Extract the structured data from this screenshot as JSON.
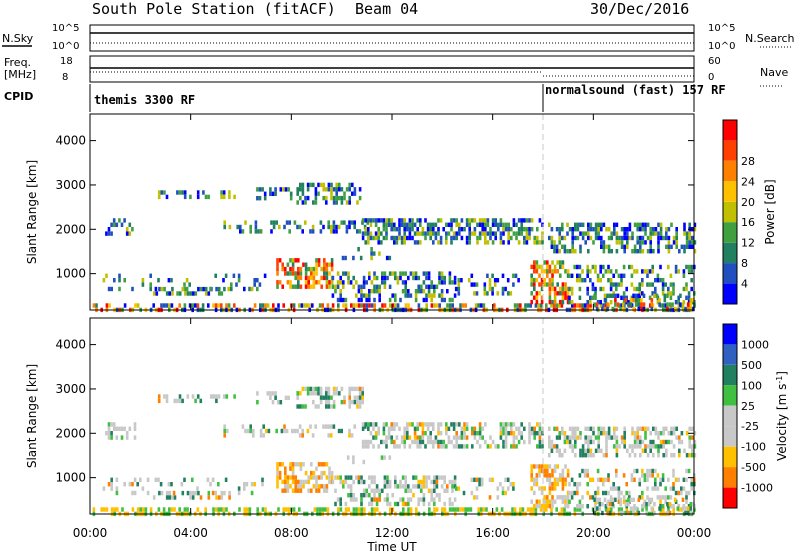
{
  "header": {
    "station": "South Pole Station (fitACF)",
    "beam": "Beam 04",
    "date": "30/Dec/2016"
  },
  "strip_labels": {
    "nsky": "N.Sky",
    "freq_line1": "Freq.",
    "freq_line2": "[MHz]",
    "cpid": "CPID",
    "nsearch": "N.Search",
    "nave": "Nave",
    "nsky_ticks": [
      "10^5",
      "10^0"
    ],
    "nsearch_ticks": [
      "10^5",
      "10^0"
    ],
    "freq_ticks": [
      "18",
      "8"
    ],
    "nave_ticks": [
      "60",
      "0"
    ]
  },
  "cpid_programs": [
    {
      "name": "themis 3300 RF",
      "start_hour": 0
    },
    {
      "name": "normalsound (fast) 157 RF",
      "start_hour": 18.0
    }
  ],
  "chart_data": [
    {
      "type": "heatmap",
      "ylabel": "Slant Range [km]",
      "xlabel": "Time UT",
      "xlim_hours": [
        0,
        24
      ],
      "ylim": [
        180,
        4600
      ],
      "y_ticks": [
        "1000",
        "2000",
        "3000",
        "4000"
      ],
      "x_ticks": [
        "00:00",
        "04:00",
        "08:00",
        "12:00",
        "16:00",
        "20:00",
        "00:00"
      ],
      "colorbar": {
        "label": "Power [dB]",
        "ticks": [
          "4",
          "8",
          "12",
          "16",
          "20",
          "24",
          "28"
        ],
        "colors": [
          "#0000ff",
          "#2050c0",
          "#208060",
          "#40a040",
          "#c0c000",
          "#ffc000",
          "#ff8000",
          "#ff4000",
          "#ff0000"
        ]
      }
    },
    {
      "type": "heatmap",
      "ylabel": "Slant Range [km]",
      "xlabel": "Time UT",
      "xlim_hours": [
        0,
        24
      ],
      "ylim": [
        180,
        4600
      ],
      "y_ticks": [
        "1000",
        "2000",
        "3000",
        "4000"
      ],
      "x_ticks": [
        "00:00",
        "04:00",
        "08:00",
        "12:00",
        "16:00",
        "20:00",
        "00:00"
      ],
      "colorbar": {
        "label": "Velocity [m s^-1]",
        "ticks": [
          "1000",
          "500",
          "100",
          "25",
          "-25",
          "-100",
          "-500",
          "-1000"
        ],
        "colors": [
          "#0000ff",
          "#3060c0",
          "#208060",
          "#40c040",
          "#c8c8c8",
          "#c8c8c8",
          "#ffc000",
          "#ff8000",
          "#ff0000"
        ]
      }
    }
  ],
  "colors": {
    "axis": "#000000",
    "program_divider": "#c8c8c8",
    "background": "#ffffff"
  }
}
